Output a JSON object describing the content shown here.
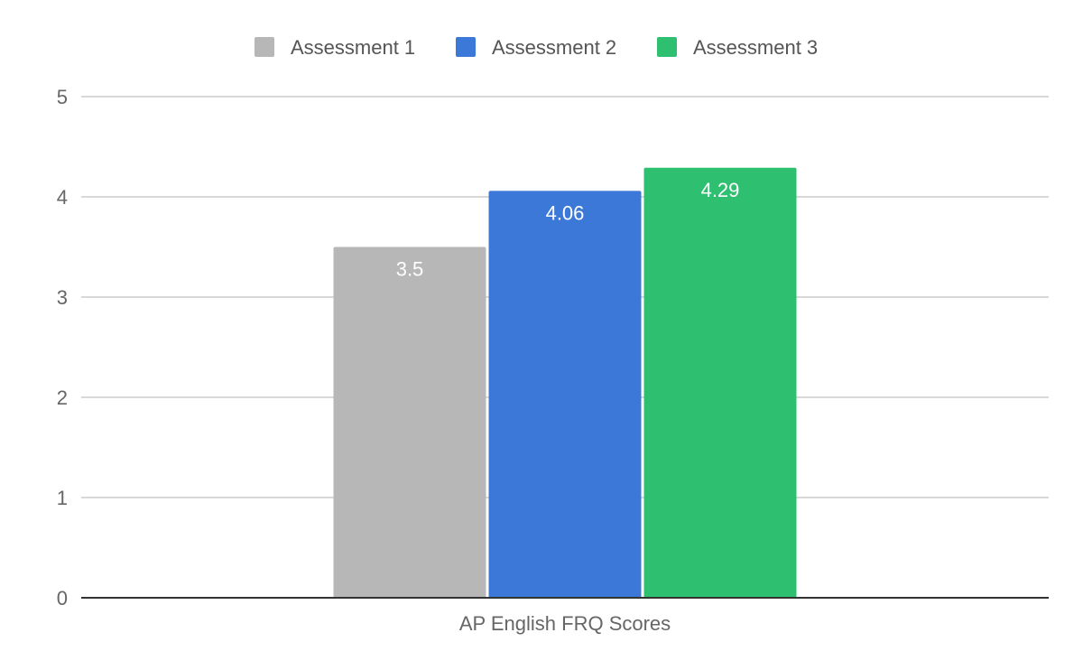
{
  "chart_data": {
    "type": "bar",
    "categories": [
      "AP English FRQ Scores"
    ],
    "series": [
      {
        "name": "Assessment 1",
        "values": [
          3.5
        ],
        "color": "#b7b7b7",
        "data_labels": [
          "3.5"
        ]
      },
      {
        "name": "Assessment 2",
        "values": [
          4.06
        ],
        "color": "#3c78d8",
        "data_labels": [
          "4.06"
        ]
      },
      {
        "name": "Assessment 3",
        "values": [
          4.29
        ],
        "color": "#2ebf71",
        "data_labels": [
          "4.29"
        ]
      }
    ],
    "title": "",
    "xlabel": "",
    "ylabel": "",
    "ylim": [
      0,
      5
    ],
    "yticks": [
      "0",
      "1",
      "2",
      "3",
      "4",
      "5"
    ],
    "grid": true,
    "legend_position": "top"
  }
}
